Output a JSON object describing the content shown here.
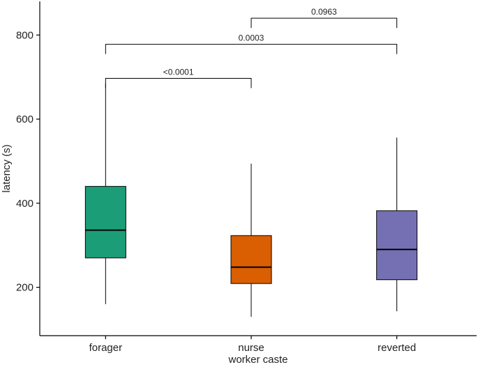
{
  "chart_data": {
    "type": "boxplot",
    "xlabel": "worker caste",
    "ylabel": "latency (s)",
    "categories": [
      "forager",
      "nurse",
      "reverted"
    ],
    "ylim": [
      85,
      880
    ],
    "yticks": [
      200,
      400,
      600,
      800
    ],
    "grid": false,
    "legend": "none",
    "boxes": [
      {
        "category": "forager",
        "min": 160,
        "q1": 270,
        "median": 336,
        "q3": 440,
        "max": 685,
        "color": "#1b9e77"
      },
      {
        "category": "nurse",
        "min": 130,
        "q1": 209,
        "median": 248,
        "q3": 323,
        "max": 494,
        "color": "#d95f02"
      },
      {
        "category": "reverted",
        "min": 143,
        "q1": 218,
        "median": 290,
        "q3": 382,
        "max": 556,
        "color": "#7570b3"
      }
    ],
    "comparisons": [
      {
        "from": "nurse",
        "to": "reverted",
        "label": "0.0963",
        "y": 840
      },
      {
        "from": "forager",
        "to": "reverted",
        "label": "0.0003",
        "y": 778
      },
      {
        "from": "forager",
        "to": "nurse",
        "label": "<0.0001",
        "y": 697
      }
    ]
  }
}
